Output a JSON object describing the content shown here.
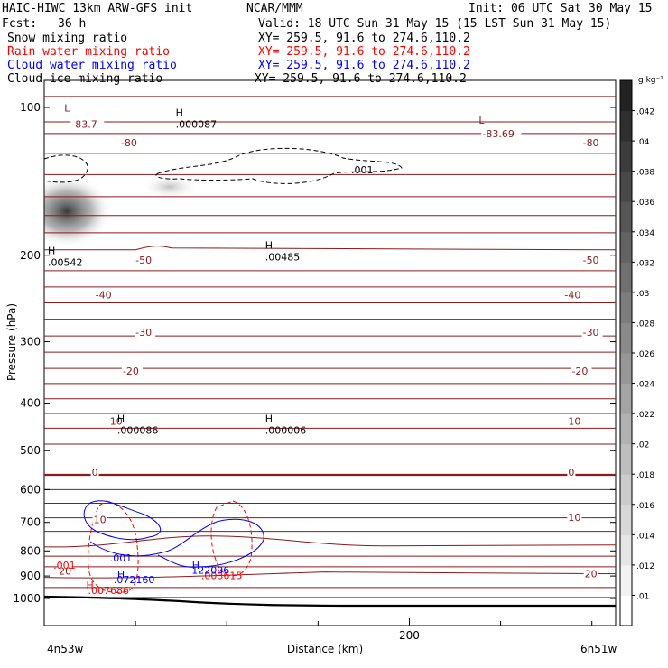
{
  "header": {
    "model": "HAIC-HIWC 13km ARW-GFS init",
    "org": "NCAR/MMM",
    "init": "Init: 06 UTC Sat 30 May 15",
    "fcst_label": "Fcst:",
    "fcst_value": "36 h",
    "valid": "Valid: 18 UTC Sun 31 May 15 (15 LST Sun 31 May 15)"
  },
  "fields": [
    {
      "name": "Snow mixing ratio",
      "xy": "XY= 259.5, 91.6 to 274.6,110.2",
      "color": "#000000"
    },
    {
      "name": "Rain water mixing ratio",
      "xy": "XY= 259.5, 91.6 to 274.6,110.2",
      "color": "#ff0000"
    },
    {
      "name": "Cloud water mixing ratio",
      "xy": "XY= 259.5, 91.6 to 274.6,110.2",
      "color": "#0000ff"
    },
    {
      "name": "Cloud ice mixing ratio",
      "xy": "XY= 259.5, 91.6 to 274.6,110.2",
      "color": "#000000"
    }
  ],
  "colorbar": {
    "unit": "g kg⁻¹",
    "ticks": [
      ".01",
      ".012",
      ".014",
      ".016",
      ".018",
      ".02",
      ".022",
      ".024",
      ".026",
      ".028",
      ".03",
      ".032",
      ".034",
      ".036",
      ".038",
      ".04",
      ".042"
    ]
  },
  "bottom": {
    "left": "4n53w",
    "right": "6n51w",
    "xlabel": "Distance (km)"
  },
  "chart_data": {
    "type": "contour",
    "ylabel": "Pressure (hPa)",
    "xlabel": "Distance (km)",
    "y_scale": "log",
    "ylim": [
      1050,
      70
    ],
    "xlim": [
      0,
      313
    ],
    "y_ticks": [
      100,
      200,
      300,
      400,
      500,
      600,
      700,
      800,
      900,
      1000
    ],
    "x_ticks": [
      200
    ],
    "temperature_contours": {
      "color": "#8b1a1a",
      "labels": [
        {
          "text": "-83.7",
          "x": 15,
          "p": 110
        },
        {
          "text": "-83.69",
          "x": 240,
          "p": 115
        },
        {
          "text": "-80",
          "x": 42,
          "p": 120
        },
        {
          "text": "-80",
          "x": 295,
          "p": 120
        },
        {
          "text": "-50",
          "x": 50,
          "p": 208
        },
        {
          "text": "-50",
          "x": 295,
          "p": 208
        },
        {
          "text": "-40",
          "x": 28,
          "p": 245
        },
        {
          "text": "-40",
          "x": 285,
          "p": 245
        },
        {
          "text": "-30",
          "x": 50,
          "p": 292
        },
        {
          "text": "-30",
          "x": 295,
          "p": 292
        },
        {
          "text": "-20",
          "x": 43,
          "p": 350
        },
        {
          "text": "-20",
          "x": 289,
          "p": 350
        },
        {
          "text": "-10",
          "x": 34,
          "p": 443
        },
        {
          "text": "-10",
          "x": 285,
          "p": 443
        },
        {
          "text": "0",
          "x": 26,
          "p": 562
        },
        {
          "text": "0",
          "x": 287,
          "p": 562
        },
        {
          "text": "10",
          "x": 27,
          "p": 702
        },
        {
          "text": "10",
          "x": 287,
          "p": 695
        },
        {
          "text": "20",
          "x": 8,
          "p": 893
        },
        {
          "text": "20",
          "x": 296,
          "p": 906
        }
      ],
      "extrema": [
        {
          "mark": "L",
          "value": "-83.7",
          "x": 11,
          "p": 102
        },
        {
          "mark": "L",
          "value": "-83.69",
          "x": 238,
          "p": 108
        }
      ]
    },
    "snow_ice_maxima": [
      {
        "mark": "H",
        "value": ".00542",
        "x": 2,
        "p": 210
      },
      {
        "mark": "H",
        "value": ".000087",
        "x": 72,
        "p": 110
      },
      {
        "mark": "H",
        "value": ".00485",
        "x": 121,
        "p": 205
      },
      {
        "mark": "H",
        "value": ".000086",
        "x": 40,
        "p": 462
      },
      {
        "mark": "H",
        "value": ".000006",
        "x": 121,
        "p": 462
      }
    ],
    "cloud_ice_contour_labels": [
      ".001"
    ],
    "rain_water": {
      "color": "#ff0000",
      "labels": [
        {
          "text": ".001",
          "x": 5,
          "p": 870
        },
        {
          "text": "H",
          "x": 23,
          "p": 955
        },
        {
          "text": ".007686",
          "x": 24,
          "p": 980
        },
        {
          "text": ".003615",
          "x": 86,
          "p": 913
        }
      ]
    },
    "cloud_water": {
      "color": "#0000ff",
      "labels": [
        {
          "text": ".001",
          "x": 36,
          "p": 840
        },
        {
          "text": "H",
          "x": 40,
          "p": 907
        },
        {
          "text": ".072160",
          "x": 38,
          "p": 930
        },
        {
          "text": "H",
          "x": 81,
          "p": 870
        },
        {
          "text": ".122096",
          "x": 79,
          "p": 890
        }
      ]
    }
  }
}
